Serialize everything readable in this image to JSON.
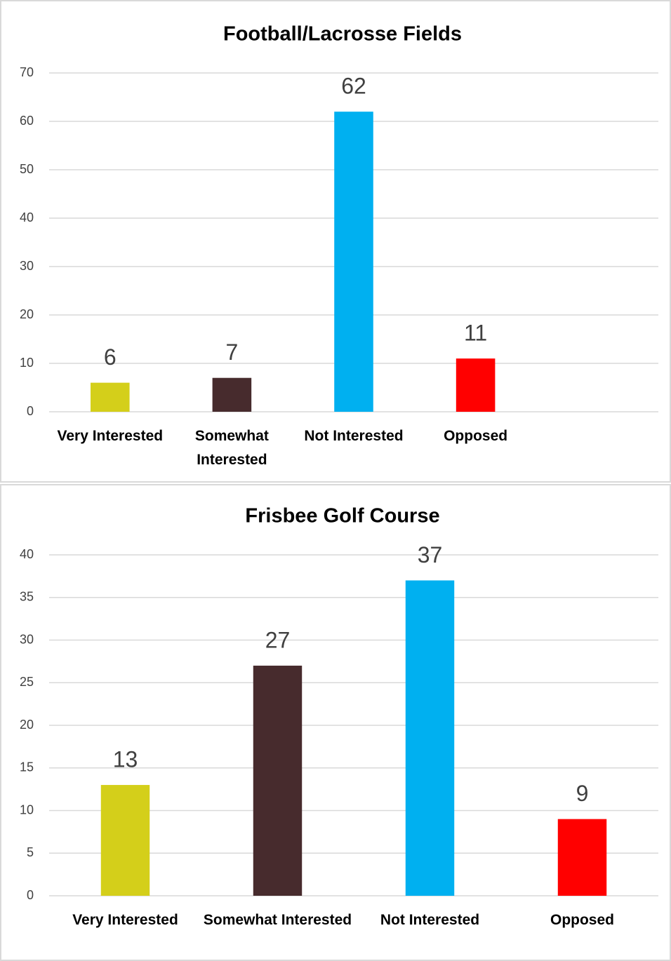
{
  "chart_data": [
    {
      "type": "bar",
      "title": "Football/Lacrosse Fields",
      "categories": [
        "Very Interested",
        "Somewhat Interested",
        "Not Interested",
        "Opposed",
        null
      ],
      "values": [
        6,
        7,
        62,
        11,
        null
      ],
      "colors": [
        "#d4cf1a",
        "#472b2d",
        "#00b0f0",
        "#ff0000",
        null
      ],
      "ylim": [
        0,
        70
      ],
      "yticks": [
        0,
        10,
        20,
        30,
        40,
        50,
        60,
        70
      ],
      "grid": true
    },
    {
      "type": "bar",
      "title": "Frisbee Golf Course",
      "categories": [
        "Very Interested",
        "Somewhat Interested",
        "Not Interested",
        "Opposed"
      ],
      "values": [
        13,
        27,
        37,
        9
      ],
      "colors": [
        "#d4cf1a",
        "#472b2d",
        "#00b0f0",
        "#ff0000"
      ],
      "ylim": [
        0,
        40
      ],
      "yticks": [
        0,
        5,
        10,
        15,
        20,
        25,
        30,
        35,
        40
      ],
      "grid": true
    }
  ]
}
